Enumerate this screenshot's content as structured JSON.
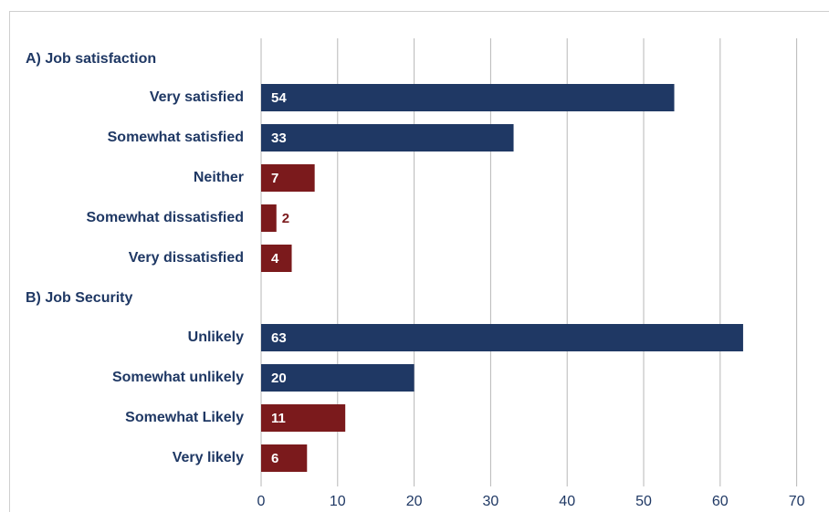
{
  "colors": {
    "positive": "#1f3864",
    "negative": "#7b1a1c",
    "grid": "#b7b7b7",
    "text": "#1f3864"
  },
  "chart_data": {
    "type": "bar",
    "orientation": "horizontal",
    "xlim": [
      0,
      70
    ],
    "xticks": [
      0,
      10,
      20,
      30,
      40,
      50,
      60,
      70
    ],
    "grid": true,
    "groups": [
      {
        "title": "A) Job satisfaction",
        "categories": [
          "Very satisfied",
          "Somewhat satisfied",
          "Neither",
          "Somewhat dissatisfied",
          "Very dissatisfied"
        ],
        "values": [
          54,
          33,
          7,
          2,
          4
        ],
        "tones": [
          "positive",
          "positive",
          "negative",
          "negative",
          "negative"
        ]
      },
      {
        "title": "B) Job Security",
        "categories": [
          "Unlikely",
          "Somewhat unlikely",
          "Somewhat Likely",
          "Very likely"
        ],
        "values": [
          63,
          20,
          11,
          6
        ],
        "tones": [
          "positive",
          "positive",
          "negative",
          "negative"
        ]
      }
    ]
  }
}
